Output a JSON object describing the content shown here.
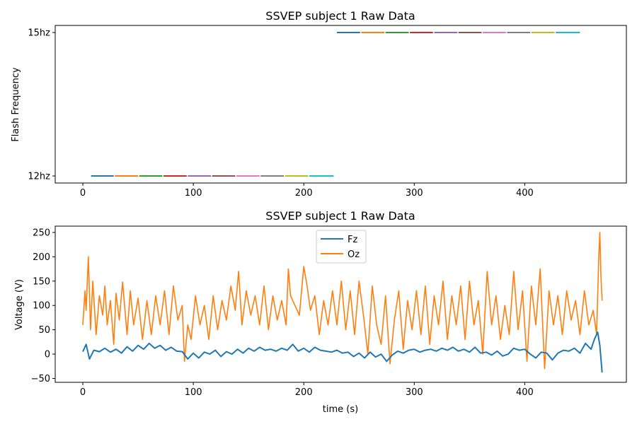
{
  "palette": [
    "#1f77b4",
    "#ff7f0e",
    "#2ca02c",
    "#d62728",
    "#9467bd",
    "#8c564b",
    "#e377c2",
    "#7f7f7f",
    "#bcbd22",
    "#17becf"
  ],
  "chart_data": [
    {
      "type": "line",
      "title": "SSVEP subject 1 Raw Data",
      "xlabel": "",
      "ylabel": "Flash Frequency",
      "xlim": [
        -25,
        492
      ],
      "x_ticks": [
        0,
        100,
        200,
        300,
        400
      ],
      "y_categories": [
        "12hz",
        "15hz"
      ],
      "grid": false,
      "segments": [
        {
          "x0": 7.5,
          "x1": 28,
          "y": "12hz"
        },
        {
          "x0": 29,
          "x1": 50,
          "y": "12hz"
        },
        {
          "x0": 51,
          "x1": 72,
          "y": "12hz"
        },
        {
          "x0": 73,
          "x1": 94,
          "y": "12hz"
        },
        {
          "x0": 95,
          "x1": 116,
          "y": "12hz"
        },
        {
          "x0": 117,
          "x1": 138,
          "y": "12hz"
        },
        {
          "x0": 139,
          "x1": 160,
          "y": "12hz"
        },
        {
          "x0": 161,
          "x1": 182,
          "y": "12hz"
        },
        {
          "x0": 183,
          "x1": 204,
          "y": "12hz"
        },
        {
          "x0": 205,
          "x1": 227,
          "y": "12hz"
        },
        {
          "x0": 230,
          "x1": 251,
          "y": "15hz"
        },
        {
          "x0": 252,
          "x1": 273,
          "y": "15hz"
        },
        {
          "x0": 274,
          "x1": 295,
          "y": "15hz"
        },
        {
          "x0": 296,
          "x1": 317,
          "y": "15hz"
        },
        {
          "x0": 318,
          "x1": 339,
          "y": "15hz"
        },
        {
          "x0": 340,
          "x1": 361,
          "y": "15hz"
        },
        {
          "x0": 362,
          "x1": 383,
          "y": "15hz"
        },
        {
          "x0": 384,
          "x1": 405,
          "y": "15hz"
        },
        {
          "x0": 406,
          "x1": 427,
          "y": "15hz"
        },
        {
          "x0": 428,
          "x1": 450,
          "y": "15hz"
        }
      ]
    },
    {
      "type": "line",
      "title": "SSVEP subject 1 Raw Data",
      "xlabel": "time (s)",
      "ylabel": "Voltage (V)",
      "xlim": [
        -25,
        492
      ],
      "ylim": [
        -58,
        263
      ],
      "x_ticks": [
        0,
        100,
        200,
        300,
        400
      ],
      "y_ticks": [
        -50,
        0,
        50,
        100,
        150,
        200,
        250
      ],
      "grid": false,
      "legend": "top-center",
      "series": [
        {
          "name": "Fz",
          "x": [
            0,
            3,
            6,
            10,
            15,
            20,
            25,
            30,
            35,
            40,
            45,
            50,
            55,
            60,
            65,
            70,
            75,
            80,
            85,
            90,
            95,
            100,
            105,
            110,
            115,
            120,
            125,
            130,
            135,
            140,
            145,
            150,
            155,
            160,
            165,
            170,
            175,
            180,
            185,
            190,
            195,
            200,
            205,
            210,
            215,
            220,
            225,
            230,
            235,
            240,
            245,
            250,
            255,
            260,
            265,
            270,
            275,
            280,
            285,
            290,
            295,
            300,
            305,
            310,
            315,
            320,
            325,
            330,
            335,
            340,
            345,
            350,
            355,
            360,
            365,
            370,
            375,
            380,
            385,
            390,
            395,
            400,
            405,
            410,
            415,
            420,
            425,
            430,
            435,
            440,
            445,
            450,
            455,
            460,
            463,
            466,
            468,
            470
          ],
          "y": [
            5,
            20,
            -10,
            8,
            5,
            12,
            4,
            10,
            2,
            15,
            6,
            18,
            10,
            22,
            12,
            18,
            8,
            14,
            6,
            5,
            -10,
            2,
            -8,
            4,
            0,
            8,
            -5,
            5,
            0,
            10,
            2,
            12,
            6,
            14,
            8,
            10,
            6,
            12,
            8,
            20,
            6,
            12,
            4,
            14,
            8,
            6,
            4,
            8,
            2,
            4,
            -5,
            2,
            -8,
            4,
            -6,
            0,
            -15,
            -2,
            6,
            2,
            8,
            10,
            4,
            8,
            10,
            6,
            12,
            8,
            14,
            6,
            10,
            4,
            14,
            2,
            4,
            -2,
            6,
            -4,
            0,
            12,
            8,
            10,
            0,
            -8,
            4,
            2,
            -12,
            2,
            8,
            6,
            12,
            2,
            22,
            10,
            30,
            45,
            18,
            -38
          ]
        },
        {
          "name": "Oz",
          "x": [
            0,
            2,
            3,
            5,
            7,
            9,
            12,
            15,
            18,
            20,
            22,
            25,
            28,
            30,
            33,
            36,
            40,
            43,
            46,
            50,
            54,
            58,
            62,
            66,
            70,
            74,
            78,
            82,
            86,
            90,
            92,
            95,
            98,
            102,
            106,
            110,
            114,
            118,
            122,
            126,
            130,
            134,
            138,
            141,
            144,
            148,
            152,
            156,
            160,
            164,
            168,
            172,
            176,
            180,
            184,
            186,
            188,
            192,
            196,
            200,
            203,
            206,
            210,
            214,
            218,
            222,
            226,
            230,
            234,
            238,
            242,
            246,
            250,
            254,
            258,
            262,
            266,
            270,
            274,
            278,
            282,
            286,
            290,
            294,
            298,
            302,
            306,
            310,
            314,
            318,
            322,
            326,
            330,
            334,
            338,
            342,
            346,
            350,
            354,
            358,
            362,
            366,
            370,
            374,
            378,
            382,
            386,
            390,
            394,
            398,
            402,
            406,
            410,
            414,
            418,
            422,
            426,
            430,
            434,
            438,
            442,
            446,
            450,
            454,
            458,
            462,
            465,
            467,
            468,
            469,
            470
          ],
          "y": [
            60,
            130,
            90,
            200,
            50,
            150,
            40,
            120,
            80,
            140,
            60,
            110,
            20,
            125,
            70,
            148,
            40,
            130,
            60,
            115,
            30,
            110,
            40,
            120,
            60,
            130,
            40,
            140,
            70,
            100,
            -15,
            60,
            30,
            120,
            60,
            100,
            30,
            120,
            50,
            110,
            70,
            140,
            90,
            170,
            60,
            130,
            80,
            120,
            60,
            140,
            50,
            120,
            70,
            110,
            60,
            175,
            120,
            100,
            80,
            180,
            140,
            90,
            120,
            40,
            110,
            60,
            130,
            60,
            150,
            50,
            130,
            40,
            150,
            80,
            0,
            140,
            60,
            20,
            120,
            -20,
            70,
            130,
            10,
            110,
            50,
            130,
            40,
            140,
            20,
            120,
            60,
            150,
            30,
            120,
            60,
            140,
            30,
            150,
            60,
            110,
            0,
            170,
            60,
            120,
            30,
            100,
            40,
            170,
            50,
            130,
            -15,
            140,
            60,
            175,
            -30,
            130,
            60,
            120,
            40,
            130,
            70,
            110,
            40,
            130,
            60,
            90,
            40,
            200,
            250,
            160,
            110
          ]
        }
      ]
    }
  ]
}
